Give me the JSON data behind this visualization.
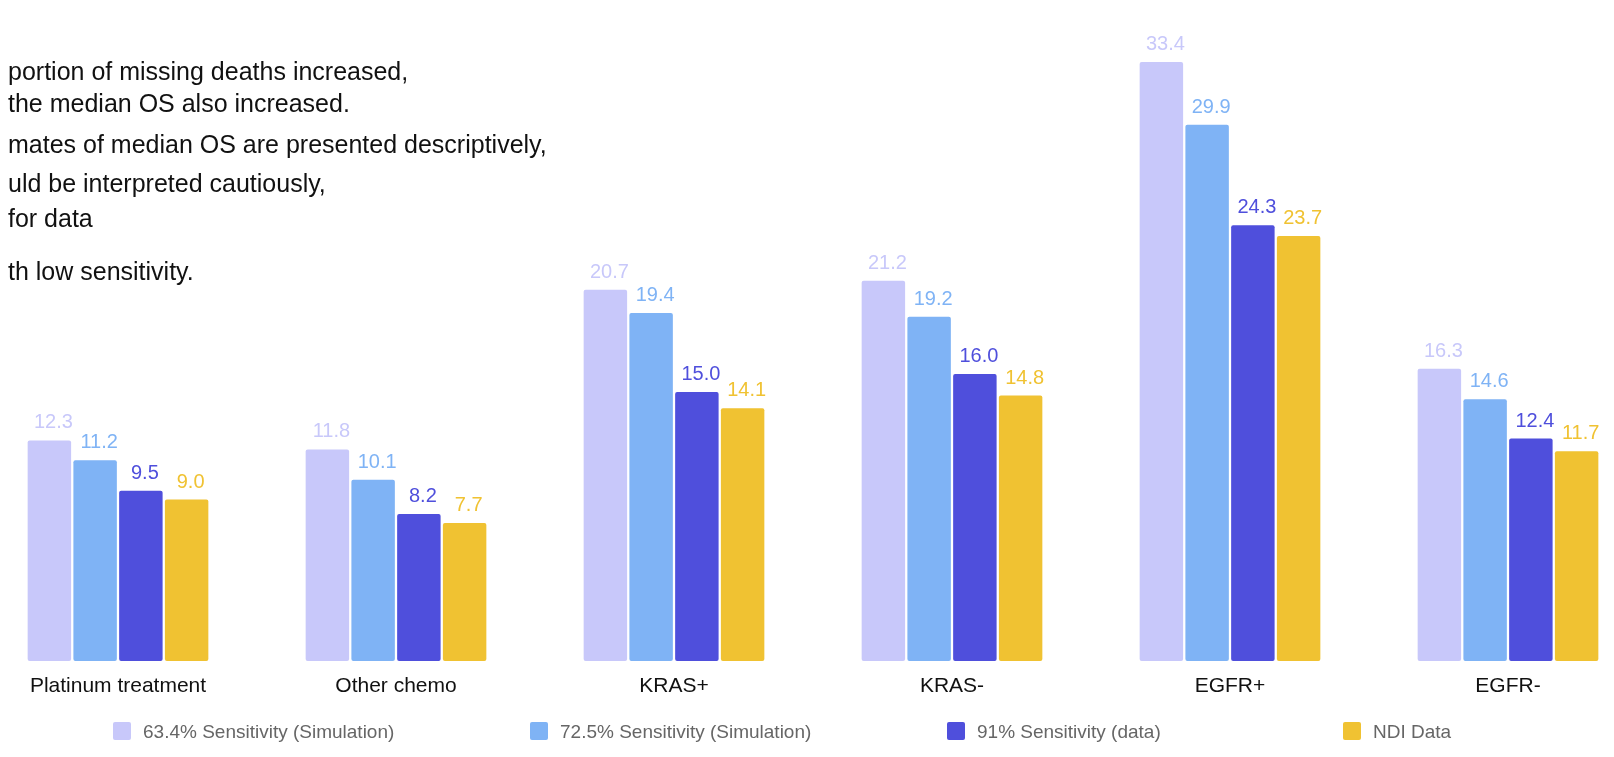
{
  "chart_data": {
    "type": "bar",
    "categories": [
      "Platinum treatment",
      "Other chemo",
      "KRAS+",
      "KRAS-",
      "EGFR+",
      "EGFR-"
    ],
    "series": [
      {
        "name": "63.4% Sensitivity (Simulation)",
        "color": "#c8c8fa",
        "values": [
          12.3,
          11.8,
          20.7,
          21.2,
          33.4,
          16.3
        ],
        "value_labels": [
          "12.3",
          "11.8",
          "20.7",
          "21.2",
          "33.4",
          "16.3"
        ]
      },
      {
        "name": "72.5% Sensitivity (Simulation)",
        "color": "#7fb3f5",
        "values": [
          11.2,
          10.1,
          19.4,
          19.2,
          29.9,
          14.6
        ],
        "value_labels": [
          "11.2",
          "10.1",
          "19.4",
          "19.2",
          "29.9",
          "14.6"
        ]
      },
      {
        "name": "91% Sensitivity (data)",
        "color": "#4f4fdc",
        "values": [
          9.5,
          8.2,
          15.0,
          16.0,
          24.3,
          12.4
        ],
        "value_labels": [
          "9.5",
          "8.2",
          "15.0",
          "16.0",
          "24.3",
          "12.4"
        ]
      },
      {
        "name": "NDI Data",
        "color": "#f0c232",
        "values": [
          9.0,
          7.7,
          14.1,
          14.8,
          23.7,
          11.7
        ],
        "value_labels": [
          "9.0",
          "7.7",
          "14.1",
          "14.8",
          "23.7",
          "11.7"
        ]
      }
    ],
    "legend": "bottom",
    "grid": false,
    "annotations": [
      "portion of missing deaths increased,",
      "the median OS also increased.",
      "mates of median OS are presented descriptively,",
      "uld be interpreted cautiously,",
      "for data",
      "th low sensitivity."
    ]
  }
}
